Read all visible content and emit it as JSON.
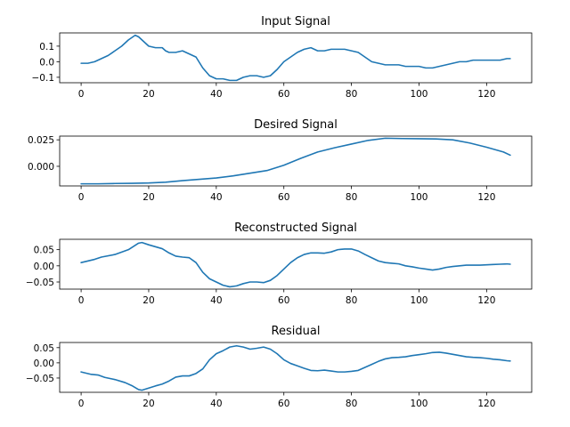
{
  "chart_data": [
    {
      "type": "line",
      "title": "Input Signal",
      "xlim": [
        -6.35,
        133.35
      ],
      "ylim": [
        -0.135,
        0.185
      ],
      "xticks": [
        0,
        20,
        40,
        60,
        80,
        100,
        120
      ],
      "xtick_labels": [
        "0",
        "20",
        "40",
        "60",
        "80",
        "100",
        "120"
      ],
      "yticks": [
        0.1,
        0.0,
        -0.1
      ],
      "ytick_labels": [
        "0.1",
        "0.0",
        "−0.1"
      ],
      "color": "#1f77b4",
      "x": [
        0,
        2,
        4,
        6,
        8,
        10,
        12,
        14,
        16,
        17,
        18,
        20,
        22,
        24,
        25,
        26,
        28,
        30,
        32,
        34,
        36,
        38,
        40,
        42,
        44,
        46,
        48,
        50,
        52,
        54,
        56,
        58,
        60,
        62,
        64,
        66,
        68,
        70,
        72,
        74,
        76,
        78,
        80,
        82,
        84,
        86,
        88,
        90,
        92,
        94,
        96,
        98,
        100,
        102,
        104,
        106,
        108,
        110,
        112,
        114,
        116,
        118,
        120,
        122,
        124,
        126,
        127
      ],
      "y": [
        -0.01,
        -0.01,
        0.0,
        0.02,
        0.04,
        0.07,
        0.1,
        0.14,
        0.17,
        0.16,
        0.14,
        0.1,
        0.09,
        0.09,
        0.07,
        0.06,
        0.06,
        0.07,
        0.05,
        0.03,
        -0.04,
        -0.09,
        -0.11,
        -0.11,
        -0.12,
        -0.12,
        -0.1,
        -0.09,
        -0.09,
        -0.1,
        -0.09,
        -0.05,
        0.0,
        0.03,
        0.06,
        0.08,
        0.09,
        0.07,
        0.07,
        0.08,
        0.08,
        0.08,
        0.07,
        0.06,
        0.03,
        0.0,
        -0.01,
        -0.02,
        -0.02,
        -0.02,
        -0.03,
        -0.03,
        -0.03,
        -0.04,
        -0.04,
        -0.03,
        -0.02,
        -0.01,
        0.0,
        0.0,
        0.01,
        0.01,
        0.01,
        0.01,
        0.01,
        0.02,
        0.02
      ]
    },
    {
      "type": "line",
      "title": "Desired Signal",
      "xlim": [
        -6.35,
        133.35
      ],
      "ylim": [
        -0.0185,
        0.0285
      ],
      "xticks": [
        0,
        20,
        40,
        60,
        80,
        100,
        120
      ],
      "xtick_labels": [
        "0",
        "20",
        "40",
        "60",
        "80",
        "100",
        "120"
      ],
      "yticks": [
        0.025,
        0.0
      ],
      "ytick_labels": [
        "0.025",
        "0.000"
      ],
      "color": "#1f77b4",
      "x": [
        0,
        5,
        10,
        15,
        20,
        25,
        30,
        35,
        40,
        45,
        50,
        55,
        60,
        65,
        70,
        75,
        80,
        85,
        90,
        95,
        100,
        105,
        110,
        115,
        120,
        125,
        127
      ],
      "y": [
        -0.0165,
        -0.0165,
        -0.0162,
        -0.016,
        -0.0157,
        -0.015,
        -0.0135,
        -0.0123,
        -0.011,
        -0.009,
        -0.0065,
        -0.004,
        0.001,
        0.0075,
        0.0135,
        0.0175,
        0.021,
        0.0245,
        0.0265,
        0.0262,
        0.026,
        0.0258,
        0.025,
        0.022,
        0.018,
        0.0135,
        0.0105
      ]
    },
    {
      "type": "line",
      "title": "Reconstructed Signal",
      "xlim": [
        -6.35,
        133.35
      ],
      "ylim": [
        -0.072,
        0.082
      ],
      "xticks": [
        0,
        20,
        40,
        60,
        80,
        100,
        120
      ],
      "xtick_labels": [
        "0",
        "20",
        "40",
        "60",
        "80",
        "100",
        "120"
      ],
      "yticks": [
        0.05,
        0.0,
        -0.05
      ],
      "ytick_labels": [
        "0.05",
        "0.00",
        "−0.05"
      ],
      "color": "#1f77b4",
      "x": [
        0,
        4,
        6,
        10,
        14,
        17,
        18,
        20,
        24,
        26,
        28,
        30,
        32,
        34,
        36,
        38,
        40,
        42,
        44,
        46,
        48,
        50,
        52,
        54,
        56,
        58,
        60,
        62,
        64,
        66,
        68,
        70,
        72,
        74,
        76,
        78,
        80,
        82,
        84,
        86,
        88,
        90,
        92,
        94,
        96,
        98,
        100,
        102,
        104,
        106,
        108,
        110,
        112,
        114,
        116,
        118,
        120,
        122,
        124,
        126,
        127
      ],
      "y": [
        0.01,
        0.02,
        0.027,
        0.035,
        0.05,
        0.07,
        0.072,
        0.065,
        0.053,
        0.04,
        0.03,
        0.027,
        0.025,
        0.01,
        -0.02,
        -0.04,
        -0.05,
        -0.06,
        -0.065,
        -0.062,
        -0.055,
        -0.05,
        -0.05,
        -0.052,
        -0.045,
        -0.03,
        -0.01,
        0.01,
        0.025,
        0.035,
        0.04,
        0.04,
        0.039,
        0.043,
        0.05,
        0.052,
        0.052,
        0.046,
        0.035,
        0.025,
        0.015,
        0.01,
        0.008,
        0.006,
        0.0,
        -0.003,
        -0.007,
        -0.01,
        -0.013,
        -0.01,
        -0.005,
        -0.002,
        0.0,
        0.002,
        0.002,
        0.002,
        0.003,
        0.004,
        0.005,
        0.006,
        0.005
      ]
    },
    {
      "type": "line",
      "title": "Residual",
      "xlim": [
        -6.35,
        133.35
      ],
      "ylim": [
        -0.097,
        0.067
      ],
      "xticks": [
        0,
        20,
        40,
        60,
        80,
        100,
        120
      ],
      "xtick_labels": [
        "0",
        "20",
        "40",
        "60",
        "80",
        "100",
        "120"
      ],
      "yticks": [
        0.05,
        0.0,
        -0.05
      ],
      "ytick_labels": [
        "0.05",
        "0.00",
        "−0.05"
      ],
      "color": "#1f77b4",
      "x": [
        0,
        3,
        5,
        7,
        10,
        13,
        15,
        17,
        18,
        20,
        22,
        24,
        26,
        28,
        30,
        32,
        34,
        36,
        38,
        40,
        42,
        44,
        46,
        48,
        50,
        52,
        54,
        56,
        58,
        60,
        62,
        64,
        66,
        68,
        70,
        72,
        74,
        76,
        78,
        80,
        82,
        84,
        86,
        88,
        90,
        92,
        94,
        96,
        98,
        100,
        102,
        104,
        106,
        108,
        110,
        112,
        114,
        116,
        118,
        120,
        122,
        124,
        126,
        127
      ],
      "y": [
        -0.03,
        -0.038,
        -0.04,
        -0.048,
        -0.055,
        -0.065,
        -0.075,
        -0.088,
        -0.09,
        -0.083,
        -0.076,
        -0.07,
        -0.06,
        -0.047,
        -0.043,
        -0.043,
        -0.035,
        -0.02,
        0.01,
        0.03,
        0.04,
        0.052,
        0.056,
        0.052,
        0.045,
        0.048,
        0.052,
        0.045,
        0.03,
        0.01,
        -0.002,
        -0.01,
        -0.018,
        -0.025,
        -0.026,
        -0.024,
        -0.027,
        -0.03,
        -0.03,
        -0.028,
        -0.025,
        -0.015,
        -0.005,
        0.005,
        0.013,
        0.017,
        0.018,
        0.02,
        0.024,
        0.027,
        0.03,
        0.034,
        0.035,
        0.032,
        0.028,
        0.024,
        0.02,
        0.018,
        0.017,
        0.015,
        0.012,
        0.01,
        0.007,
        0.006
      ]
    }
  ]
}
